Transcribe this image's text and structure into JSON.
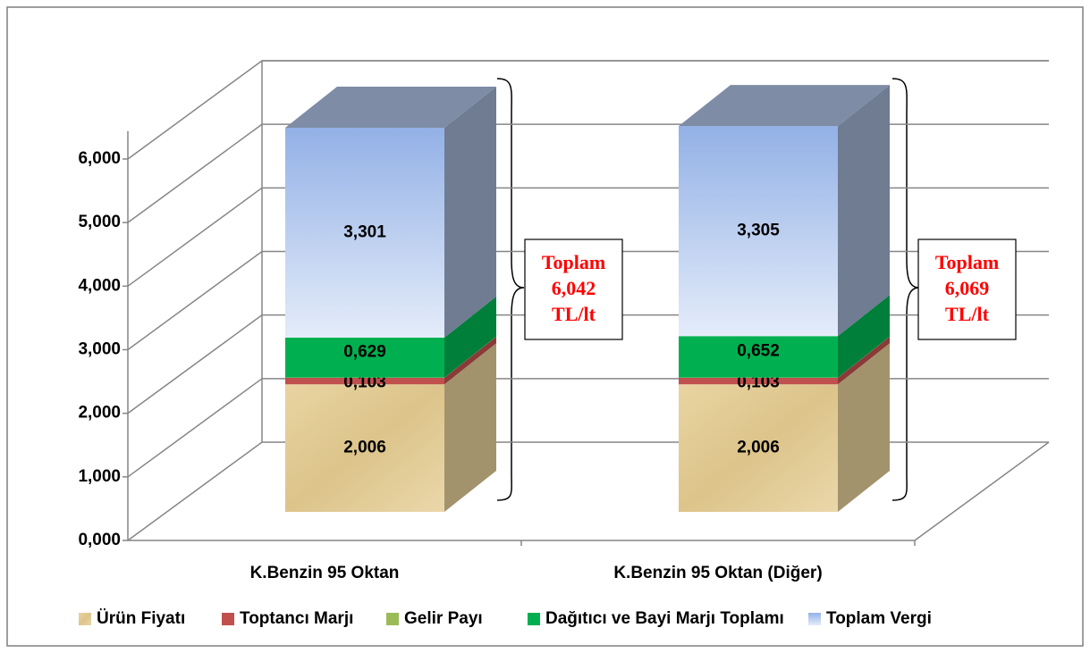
{
  "chart_data": {
    "type": "bar3d_stacked",
    "categories": [
      "K.Benzin 95 Oktan",
      "K.Benzin 95 Oktan (Diğer)"
    ],
    "series": [
      {
        "name": "Ürün Fiyatı",
        "color": "#e3cc98",
        "values": [
          2.006,
          2.006
        ],
        "value_labels": [
          "2,006",
          "2,006"
        ]
      },
      {
        "name": "Toptancı Marjı",
        "color": "#c0504d",
        "values": [
          0.103,
          0.103
        ],
        "value_labels": [
          "0,103",
          "0,103"
        ]
      },
      {
        "name": "Gelir Payı",
        "color": "#9bbb59",
        "values": [
          0.003,
          0.003
        ]
      },
      {
        "name": "Dağıtıcı ve Bayi Marjı Toplamı",
        "color": "#00b050",
        "values": [
          0.629,
          0.652
        ],
        "value_labels": [
          "0,629",
          "0,652"
        ]
      },
      {
        "name": "Toplam Vergi",
        "color": "#b4c8ec",
        "values": [
          3.301,
          3.305
        ],
        "value_labels": [
          "3,301",
          "3,305"
        ]
      }
    ],
    "ylim": [
      0,
      7
    ],
    "yticks": [
      {
        "value": 0,
        "label": "0,000"
      },
      {
        "value": 1,
        "label": "1,000"
      },
      {
        "value": 2,
        "label": "2,000"
      },
      {
        "value": 3,
        "label": "3,000"
      },
      {
        "value": 4,
        "label": "4,000"
      },
      {
        "value": 5,
        "label": "5,000"
      },
      {
        "value": 6,
        "label": "6,000"
      }
    ],
    "grid": true,
    "legend": "bottom",
    "annotations": [
      {
        "lines": [
          "Toplam",
          "6,042",
          "TL/lt"
        ],
        "color": "#ff0000"
      },
      {
        "lines": [
          "Toplam",
          "6,069",
          "TL/lt"
        ],
        "color": "#ff0000"
      }
    ]
  }
}
